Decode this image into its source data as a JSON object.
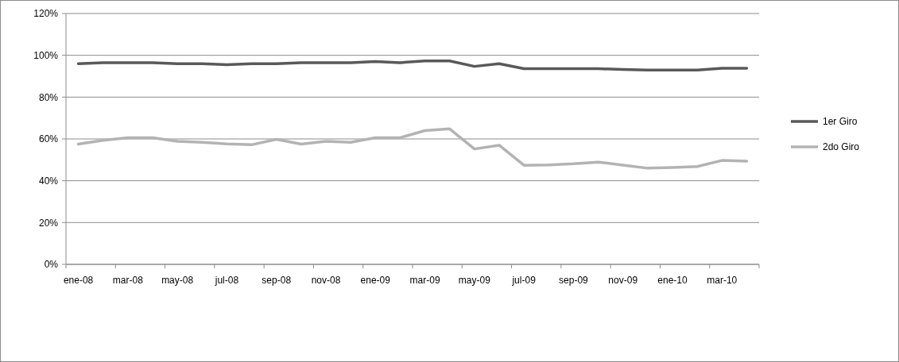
{
  "chart_data": {
    "type": "line",
    "categories": [
      "ene-08",
      null,
      "mar-08",
      null,
      "may-08",
      null,
      "jul-08",
      null,
      "sep-08",
      null,
      "nov-08",
      null,
      "ene-09",
      null,
      "mar-09",
      null,
      "may-09",
      null,
      "jul-09",
      null,
      "sep-09",
      null,
      "nov-09",
      null,
      "ene-10",
      null,
      "mar-10",
      null
    ],
    "series": [
      {
        "name": "1er Giro",
        "color": "#595959",
        "values": [
          96,
          96.5,
          96.5,
          96.5,
          96,
          96,
          95.5,
          96,
          96,
          96.5,
          96.5,
          96.5,
          97,
          96.5,
          97.3,
          97.3,
          94.7,
          96,
          93.6,
          93.6,
          93.6,
          93.6,
          93.2,
          92.9,
          92.9,
          92.9,
          93.8,
          93.8
        ]
      },
      {
        "name": "2do Giro",
        "color": "#b3b3b3",
        "values": [
          57.5,
          59.3,
          60.6,
          60.6,
          58.9,
          58.4,
          57.6,
          57.2,
          59.8,
          57.5,
          58.9,
          58.4,
          60.6,
          60.6,
          64,
          64.8,
          55.2,
          57,
          47.4,
          47.6,
          48.1,
          48.9,
          47.5,
          46,
          46.3,
          46.8,
          49.7,
          49.4
        ]
      }
    ],
    "ylim": [
      0,
      120
    ],
    "yticks": [
      {
        "value": 0,
        "label": "0%"
      },
      {
        "value": 20,
        "label": "20%"
      },
      {
        "value": 40,
        "label": "40%"
      },
      {
        "value": 60,
        "label": "60%"
      },
      {
        "value": 80,
        "label": "80%"
      },
      {
        "value": 100,
        "label": "100%"
      },
      {
        "value": 120,
        "label": "120%"
      }
    ],
    "grid": "y",
    "legend": "right",
    "line_style": "solid",
    "marker": "none"
  }
}
